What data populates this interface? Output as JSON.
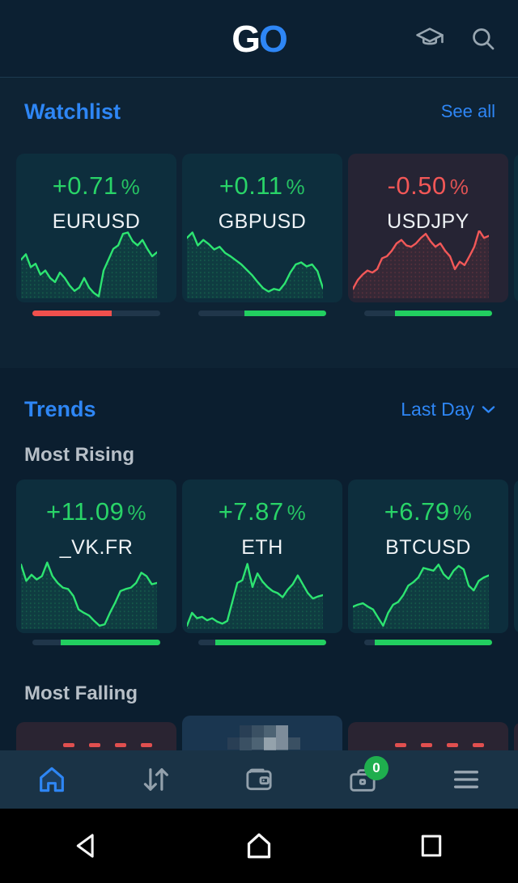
{
  "theme": {
    "bg": "#0b1e2f",
    "panel-bg": "#0e2334",
    "appbar-bg": "#0c2032",
    "card-bg": "#0d2e3d",
    "card-red-bg": "#262434",
    "falling-card-bg": "#2a2432",
    "falling-card-light-bg": "#1a3650",
    "nav-bg": "#1a3346",
    "accent-blue": "#2e86f5",
    "green-text": "#29d468",
    "red-text": "#f25757",
    "bar-red": "#f0504d",
    "bar-green": "#22cf60",
    "bar-gray": "#20364a",
    "icon-gray": "#93a1ac",
    "text-white": "#eef2f5",
    "text-gray": "#b7bfc7",
    "badge-green": "#1fae4e"
  },
  "appbar": {
    "logo_g": "G",
    "logo_o": "O"
  },
  "watchlist": {
    "title": "Watchlist",
    "action": "See all",
    "cards": [
      {
        "change": "+0.71",
        "unit": "%",
        "symbol": "EURUSD",
        "trend": "up",
        "line_color": "#2de471",
        "spark": [
          43,
          35,
          54,
          49,
          65,
          59,
          70,
          76,
          62,
          70,
          81,
          89,
          84,
          70,
          84,
          92,
          97,
          59,
          43,
          27,
          22,
          5,
          3,
          16,
          22,
          14,
          27,
          38,
          32
        ],
        "sentiment": [
          {
            "color": "red",
            "pct": 62
          },
          {
            "color": "gray",
            "pct": 38
          }
        ]
      },
      {
        "change": "+0.11",
        "unit": "%",
        "symbol": "GBPUSD",
        "trend": "up",
        "line_color": "#2de471",
        "spark": [
          11,
          3,
          22,
          14,
          20,
          28,
          24,
          33,
          38,
          44,
          50,
          58,
          66,
          76,
          85,
          90,
          86,
          88,
          78,
          62,
          50,
          47,
          53,
          50,
          60,
          85
        ],
        "sentiment": [
          {
            "color": "gray",
            "pct": 36
          },
          {
            "color": "green",
            "pct": 64
          }
        ]
      },
      {
        "change": "-0.50",
        "unit": "%",
        "symbol": "USDJPY",
        "trend": "down",
        "line_color": "#f25858",
        "spark": [
          86,
          73,
          65,
          59,
          62,
          57,
          41,
          38,
          30,
          19,
          14,
          22,
          24,
          19,
          11,
          5,
          16,
          24,
          19,
          30,
          38,
          57,
          46,
          51,
          38,
          24,
          0,
          11,
          8
        ],
        "sentiment": [
          {
            "color": "gray",
            "pct": 24
          },
          {
            "color": "green",
            "pct": 76
          }
        ]
      }
    ],
    "partial_card": {
      "line_color": "#2de471",
      "spark": [
        70,
        22,
        75
      ]
    }
  },
  "trends": {
    "title": "Trends",
    "filter_label": "Last Day",
    "rising_label": "Most Rising",
    "falling_label": "Most Falling",
    "rising_cards": [
      {
        "change": "+11.09",
        "unit": "%",
        "symbol": "_VK.FR",
        "trend": "up",
        "line_color": "#2de471",
        "spark": [
          5,
          29,
          20,
          27,
          22,
          2,
          22,
          32,
          39,
          41,
          51,
          71,
          76,
          80,
          88,
          95,
          93,
          76,
          61,
          44,
          41,
          39,
          32,
          17,
          22,
          34,
          32
        ],
        "sentiment": [
          {
            "color": "gray",
            "pct": 22
          },
          {
            "color": "green",
            "pct": 78
          }
        ]
      },
      {
        "change": "+7.87",
        "unit": "%",
        "symbol": "ETH",
        "trend": "up",
        "line_color": "#2de471",
        "spark": [
          95,
          76,
          84,
          82,
          87,
          84,
          89,
          92,
          88,
          60,
          32,
          28,
          4,
          38,
          18,
          30,
          38,
          44,
          47,
          53,
          42,
          34,
          21,
          34,
          47,
          55,
          52,
          50
        ],
        "sentiment": [
          {
            "color": "gray",
            "pct": 13
          },
          {
            "color": "green",
            "pct": 87
          }
        ]
      },
      {
        "change": "+6.79",
        "unit": "%",
        "symbol": "BTCUSD",
        "trend": "up",
        "line_color": "#2de471",
        "spark": [
          67,
          64,
          62,
          67,
          71,
          83,
          95,
          76,
          64,
          60,
          50,
          36,
          31,
          24,
          10,
          12,
          14,
          5,
          19,
          26,
          14,
          7,
          12,
          36,
          43,
          29,
          24,
          21
        ],
        "sentiment": [
          {
            "color": "gray",
            "pct": 8
          },
          {
            "color": "green",
            "pct": 92
          }
        ]
      }
    ],
    "partial_card": {
      "line_color": "#2de471",
      "spark": [
        75,
        30,
        80
      ]
    }
  },
  "bottom_nav": {
    "portfolio_badge": "0"
  }
}
